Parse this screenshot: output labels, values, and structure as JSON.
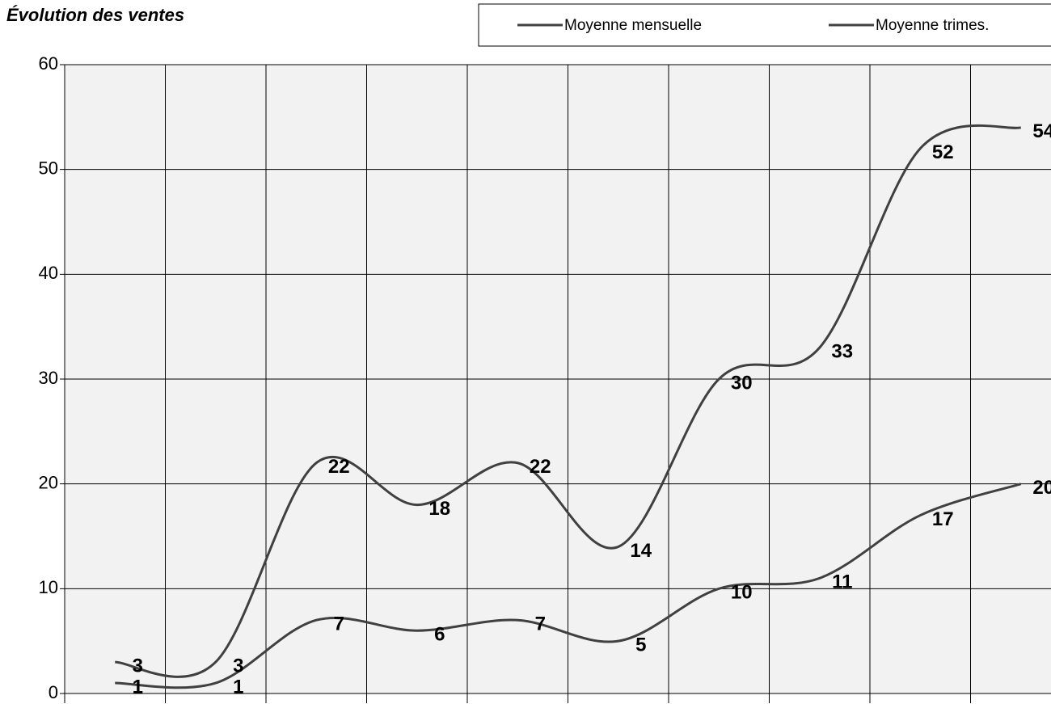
{
  "chart_data": {
    "type": "line",
    "title": "Évolution des ventes",
    "categories": [
      null,
      null,
      null,
      null,
      null,
      null,
      null,
      null,
      null,
      null
    ],
    "series": [
      {
        "name": "Moyenne mensuelle",
        "color": "#404040",
        "values": [
          1,
          1,
          7,
          6,
          7,
          5,
          10,
          11,
          17,
          20
        ]
      },
      {
        "name": "Moyenne trimes.",
        "color": "#404040",
        "values": [
          3,
          3,
          22,
          18,
          22,
          14,
          30,
          33,
          52,
          54
        ]
      }
    ],
    "ylim": [
      0,
      60
    ],
    "yticks": [
      0,
      10,
      20,
      30,
      40,
      50,
      60
    ],
    "grid": true,
    "legend": "top"
  }
}
